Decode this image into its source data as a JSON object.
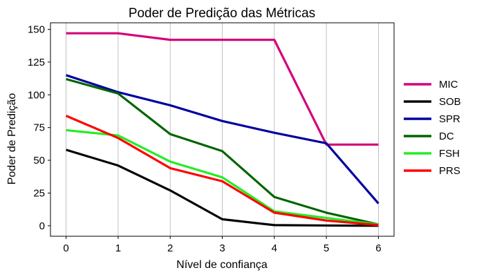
{
  "chart_data": {
    "type": "line",
    "title": "Poder de Predição das Métricas",
    "xlabel": "Nível de confiança",
    "ylabel": "Poder de Predição",
    "x": [
      0,
      1,
      2,
      3,
      4,
      5,
      6
    ],
    "xticks": [
      "0",
      "1",
      "2",
      "3",
      "4",
      "5",
      "6"
    ],
    "yticks": [
      "0",
      "25",
      "50",
      "75",
      "100",
      "125",
      "150"
    ],
    "xlim": [
      -0.3,
      6.3
    ],
    "ylim": [
      -8,
      155
    ],
    "grid": "vertical",
    "legend_position": "right",
    "series": [
      {
        "name": "MIC",
        "color": "#d4007a",
        "values": [
          147,
          147,
          142,
          142,
          142,
          62,
          62
        ]
      },
      {
        "name": "SOB",
        "color": "#000000",
        "values": [
          58,
          46,
          27,
          5,
          0.5,
          0.2,
          0
        ]
      },
      {
        "name": "SPR",
        "color": "#00009f",
        "values": [
          115,
          102,
          92,
          80,
          71,
          63,
          17
        ]
      },
      {
        "name": "DC",
        "color": "#006400",
        "values": [
          112,
          101,
          70,
          57,
          22,
          10,
          1
        ]
      },
      {
        "name": "FSH",
        "color": "#22ee22",
        "values": [
          73,
          69,
          49,
          37,
          11,
          6,
          1
        ]
      },
      {
        "name": "PRS",
        "color": "#ff0000",
        "values": [
          84,
          67,
          44,
          34,
          10,
          4,
          0.5
        ]
      }
    ]
  }
}
